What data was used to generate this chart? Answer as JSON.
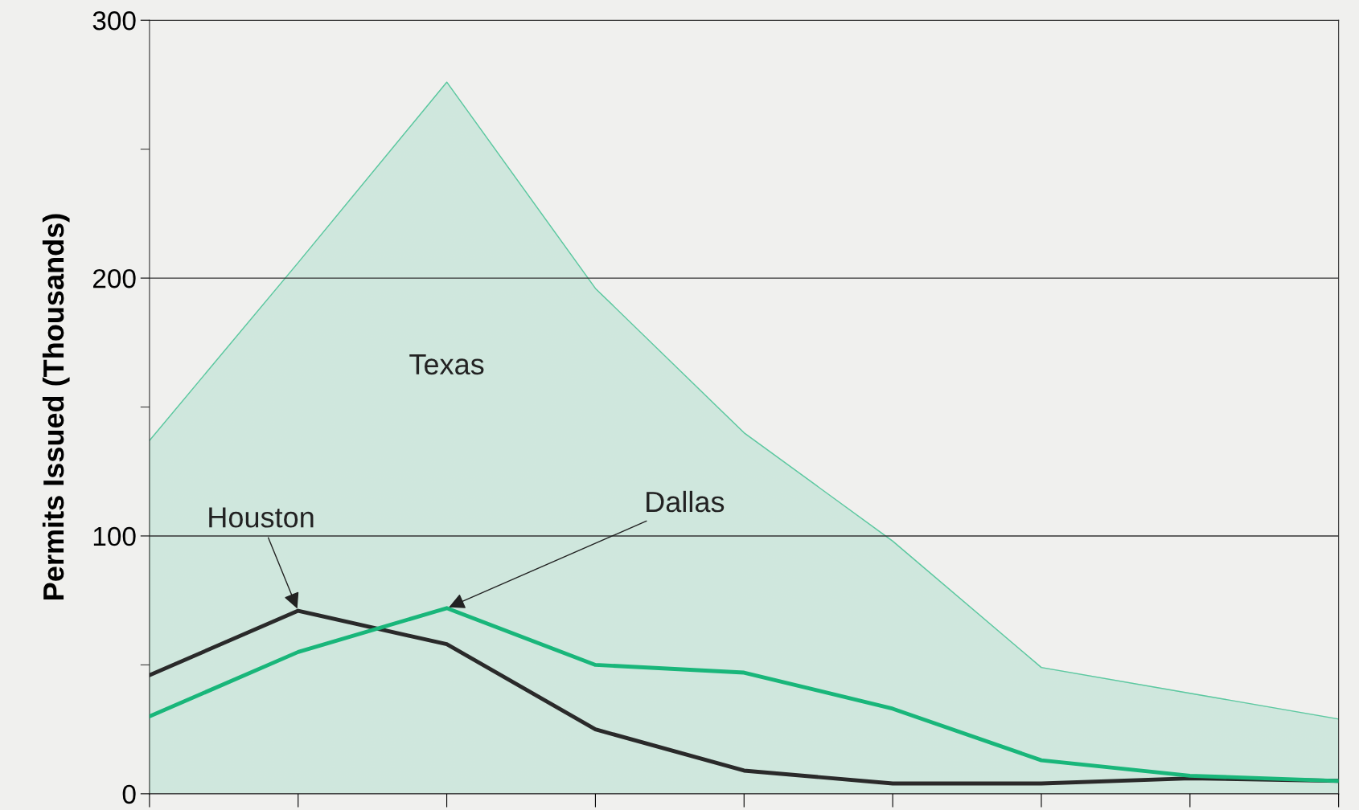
{
  "chart_data": {
    "type": "line",
    "ylabel": "Permits Issued (Thousands)",
    "categories": [
      null,
      null,
      null,
      null,
      null,
      null,
      null,
      null,
      null
    ],
    "series": [
      {
        "name": "Texas",
        "type": "area",
        "color": "#5cc8a0",
        "values": [
          137,
          206,
          276,
          196,
          140,
          98,
          49,
          39,
          29
        ]
      },
      {
        "name": "Houston",
        "color": "#2a2a2a",
        "values": [
          46,
          71,
          58,
          25,
          9,
          4,
          4,
          6,
          5
        ]
      },
      {
        "name": "Dallas",
        "color": "#19b67a",
        "values": [
          30,
          55,
          72,
          50,
          47,
          33,
          13,
          7,
          5
        ]
      }
    ],
    "ylim": [
      0,
      300
    ],
    "yticks": [
      0,
      {
        "value": 50,
        "label": null
      },
      100,
      {
        "value": 150,
        "label": null
      },
      200,
      {
        "value": 250,
        "label": null
      },
      300
    ],
    "grid": "y",
    "legend": false,
    "marker": "none",
    "line_style": "solid"
  }
}
